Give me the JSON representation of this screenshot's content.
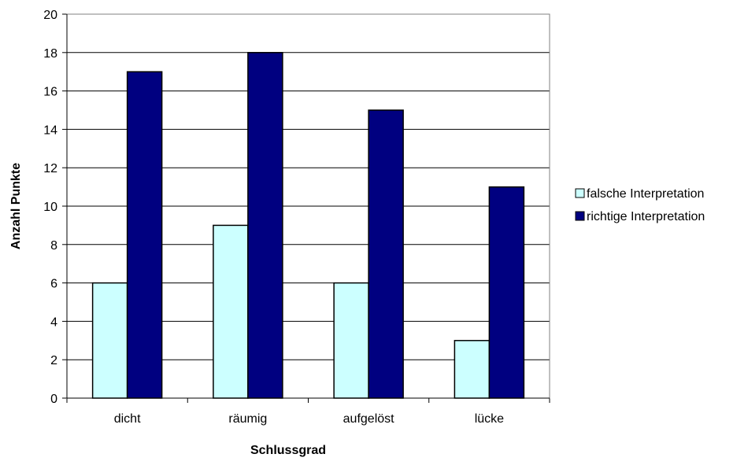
{
  "chart_data": {
    "type": "bar",
    "title": "",
    "xlabel": "Schlussgrad",
    "ylabel": "Anzahl Punkte",
    "categories": [
      "dicht",
      "räumig",
      "aufgelöst",
      "lücke"
    ],
    "series": [
      {
        "name": "falsche Interpretation",
        "values": [
          6,
          9,
          6,
          3
        ],
        "color": "#ccffff"
      },
      {
        "name": "richtige Interpretation",
        "values": [
          17,
          18,
          15,
          11
        ],
        "color": "#000080"
      }
    ],
    "ylim": [
      0,
      20
    ],
    "ytick_step": 2,
    "grid": true,
    "legend_position": "right"
  }
}
